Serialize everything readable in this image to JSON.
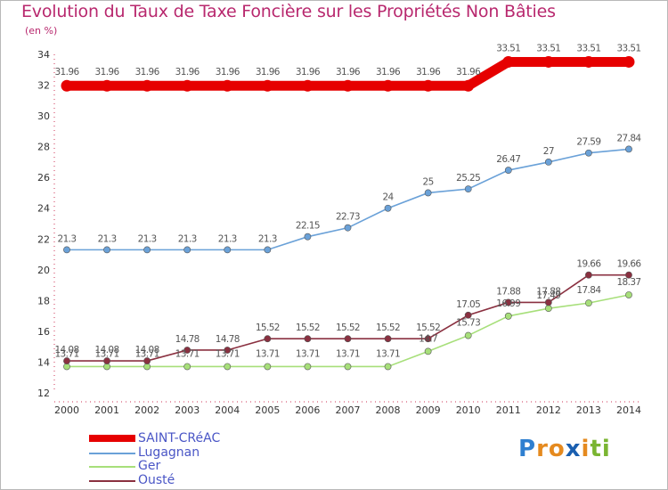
{
  "chart_data": {
    "type": "line",
    "title": "Evolution du Taux de Taxe Foncière sur les Propriétés Non Bâties",
    "ylabel": "(en %)",
    "xlabel": "",
    "x": [
      "2000",
      "2001",
      "2002",
      "2003",
      "2004",
      "2005",
      "2006",
      "2007",
      "2008",
      "2009",
      "2010",
      "2011",
      "2012",
      "2013",
      "2014"
    ],
    "ylim": [
      12,
      34
    ],
    "yticks": [
      12,
      14,
      16,
      18,
      20,
      22,
      24,
      26,
      28,
      30,
      32,
      34
    ],
    "grid": false,
    "legend_position": "bottom-left",
    "series": [
      {
        "name": "SAINT-CRéAC",
        "color": "#e60000",
        "values": [
          31.96,
          31.96,
          31.96,
          31.96,
          31.96,
          31.96,
          31.96,
          31.96,
          31.96,
          31.96,
          31.96,
          33.51,
          33.51,
          33.51,
          33.51
        ],
        "labels": [
          "31.96",
          "31.96",
          "31.96",
          "31.96",
          "31.96",
          "31.96",
          "31.96",
          "31.96",
          "31.96",
          "31.96",
          "31.96",
          "33.51",
          "33.51",
          "33.51",
          "33.51"
        ]
      },
      {
        "name": "Lugagnan",
        "color": "#6aa1d8",
        "values": [
          21.3,
          21.3,
          21.3,
          21.3,
          21.3,
          21.3,
          22.15,
          22.73,
          24,
          25,
          25.25,
          26.47,
          27,
          27.59,
          27.84
        ],
        "labels": [
          "21.3",
          "21.3",
          "21.3",
          "21.3",
          "21.3",
          "21.3",
          "22.15",
          "22.73",
          "24",
          "25",
          "25.25",
          "26.47",
          "27",
          "27.59",
          "27.84"
        ]
      },
      {
        "name": "Ger",
        "color": "#a7df7a",
        "values": [
          13.71,
          13.71,
          13.71,
          13.71,
          13.71,
          13.71,
          13.71,
          13.71,
          13.71,
          14.7,
          15.73,
          16.99,
          17.49,
          17.84,
          18.37
        ],
        "labels": [
          "13.71",
          "13.71",
          "13.71",
          "13.71",
          "13.71",
          "13.71",
          "13.71",
          "13.71",
          "13.71",
          "14.7",
          "15.73",
          "16.99",
          "17.49",
          "17.84",
          "18.37"
        ]
      },
      {
        "name": "Ousté",
        "color": "#8a3040",
        "values": [
          14.08,
          14.08,
          14.08,
          14.78,
          14.78,
          15.52,
          15.52,
          15.52,
          15.52,
          15.52,
          17.05,
          17.88,
          17.88,
          19.66,
          19.66
        ],
        "labels": [
          "14.08",
          "14.08",
          "14.08",
          "14.78",
          "14.78",
          "15.52",
          "15.52",
          "15.52",
          "15.52",
          "15.52",
          "17.05",
          "17.88",
          "17.88",
          "19.66",
          "19.66"
        ]
      }
    ]
  },
  "logo": {
    "letters": [
      "P",
      "r",
      "o",
      "x",
      "i",
      "t",
      "i"
    ],
    "colors": [
      "#2e7fd0",
      "#e58a1f",
      "#e58a1f",
      "#1a5fb0",
      "#e58a1f",
      "#7ab532",
      "#7ab532"
    ]
  }
}
